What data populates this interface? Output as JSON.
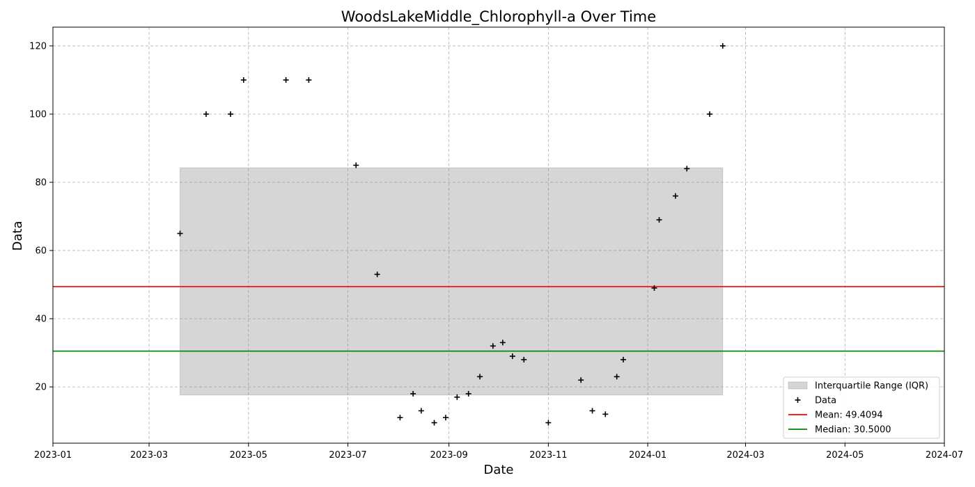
{
  "chart_data": {
    "type": "scatter",
    "title": "WoodsLakeMiddle_Chlorophyll-a Over Time",
    "xlabel": "Date",
    "ylabel": "Data",
    "x_axis_type": "date",
    "xlim": [
      "2023-01-01",
      "2024-07-01"
    ],
    "ylim": [
      3.5,
      125.5
    ],
    "grid": true,
    "grid_style": "dashed",
    "legend_position": "lower right",
    "x_ticks": [
      "2023-01-01",
      "2023-03-01",
      "2023-05-01",
      "2023-07-01",
      "2023-09-01",
      "2023-11-01",
      "2024-01-01",
      "2024-03-01",
      "2024-05-01",
      "2024-07-01"
    ],
    "x_tick_labels": [
      "2023-01",
      "2023-03",
      "2023-05",
      "2023-07",
      "2023-09",
      "2023-11",
      "2024-01",
      "2024-03",
      "2024-05",
      "2024-07"
    ],
    "y_ticks": [
      20,
      40,
      60,
      80,
      100,
      120
    ],
    "y_tick_labels": [
      "20",
      "40",
      "60",
      "80",
      "100",
      "120"
    ],
    "series": [
      {
        "name": "Data",
        "marker": "plus",
        "color": "#000000",
        "points": [
          {
            "x": "2023-03-20",
            "y": 65
          },
          {
            "x": "2023-04-05",
            "y": 100
          },
          {
            "x": "2023-04-20",
            "y": 100
          },
          {
            "x": "2023-04-28",
            "y": 110
          },
          {
            "x": "2023-05-24",
            "y": 110
          },
          {
            "x": "2023-06-07",
            "y": 110
          },
          {
            "x": "2023-07-06",
            "y": 85
          },
          {
            "x": "2023-07-19",
            "y": 53
          },
          {
            "x": "2023-08-02",
            "y": 11
          },
          {
            "x": "2023-08-10",
            "y": 18
          },
          {
            "x": "2023-08-15",
            "y": 13
          },
          {
            "x": "2023-08-23",
            "y": 9.5
          },
          {
            "x": "2023-08-30",
            "y": 11
          },
          {
            "x": "2023-09-06",
            "y": 17
          },
          {
            "x": "2023-09-13",
            "y": 18
          },
          {
            "x": "2023-09-20",
            "y": 23
          },
          {
            "x": "2023-09-28",
            "y": 32
          },
          {
            "x": "2023-10-04",
            "y": 33
          },
          {
            "x": "2023-10-10",
            "y": 29
          },
          {
            "x": "2023-10-17",
            "y": 28
          },
          {
            "x": "2023-11-01",
            "y": 9.5
          },
          {
            "x": "2023-11-21",
            "y": 22
          },
          {
            "x": "2023-11-28",
            "y": 13
          },
          {
            "x": "2023-12-06",
            "y": 12
          },
          {
            "x": "2023-12-13",
            "y": 23
          },
          {
            "x": "2023-12-17",
            "y": 28
          },
          {
            "x": "2024-01-05",
            "y": 49
          },
          {
            "x": "2024-01-08",
            "y": 69
          },
          {
            "x": "2024-01-18",
            "y": 76
          },
          {
            "x": "2024-01-25",
            "y": 84
          },
          {
            "x": "2024-02-08",
            "y": 100
          },
          {
            "x": "2024-02-16",
            "y": 120
          }
        ]
      }
    ],
    "reference_lines": [
      {
        "name": "Mean: 49.4094",
        "y": 49.4094,
        "color": "#ff0000"
      },
      {
        "name": "Median: 30.5000",
        "y": 30.5,
        "color": "#008000"
      }
    ],
    "iqr_band": {
      "name": "Interquartile Range (IQR)",
      "x_start": "2023-03-20",
      "x_end": "2024-02-16",
      "y_low": 17.625,
      "y_high": 84.25,
      "color": "#d6d6d6"
    },
    "legend": [
      {
        "label": "Interquartile Range (IQR)",
        "kind": "patch",
        "color": "#d6d6d6"
      },
      {
        "label": "Data",
        "kind": "marker",
        "color": "#000000"
      },
      {
        "label": "Mean: 49.4094",
        "kind": "line",
        "color": "#ff0000"
      },
      {
        "label": "Median: 30.5000",
        "kind": "line",
        "color": "#008000"
      }
    ]
  }
}
